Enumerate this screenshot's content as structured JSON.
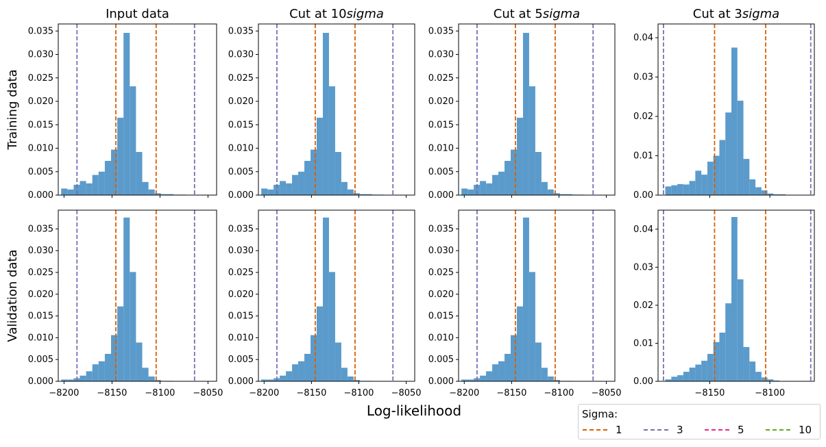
{
  "figure": {
    "xlabel": "Log-likelihood",
    "row_labels": [
      "Training data",
      "Validation data"
    ],
    "col_titles": [
      {
        "text": "Input data",
        "italic": ""
      },
      {
        "text": "Cut at 10",
        "italic": "sigma"
      },
      {
        "text": "Cut at 5",
        "italic": "sigma"
      },
      {
        "text": "Cut at 3",
        "italic": "sigma"
      }
    ],
    "bar_color": "#5b9bcb"
  },
  "legend": {
    "title": "Sigma:",
    "entries": [
      {
        "label": "1",
        "color": "#d95f02"
      },
      {
        "label": "3",
        "color": "#7570b3"
      },
      {
        "label": "5",
        "color": "#e7298a"
      },
      {
        "label": "10",
        "color": "#66a61e"
      }
    ]
  },
  "chart_data": [
    {
      "type": "bar",
      "row": "Training data",
      "col": "Input data",
      "xlim": [
        -8206,
        -8041
      ],
      "ylim": [
        0,
        0.0365
      ],
      "xticks": [
        -8200,
        -8150,
        -8100,
        -8050
      ],
      "yticks": [
        0,
        0.005,
        0.01,
        0.015,
        0.02,
        0.025,
        0.03,
        0.035
      ],
      "ytick_labels": [
        "0.000",
        "0.005",
        "0.010",
        "0.015",
        "0.020",
        "0.025",
        "0.030",
        "0.035"
      ],
      "show_xtick_labels": false,
      "bin_start": -8203,
      "bin_width": 6.5,
      "values": [
        0.0014,
        0.0012,
        0.0022,
        0.003,
        0.0025,
        0.0043,
        0.005,
        0.0073,
        0.0097,
        0.0165,
        0.0346,
        0.0232,
        0.0092,
        0.0028,
        0.0012,
        0.0004,
        0.0002,
        0.0002,
        0.0001,
        0.0001
      ],
      "vlines": [
        {
          "x": -8186.5,
          "sigma": "3"
        },
        {
          "x": -8146,
          "sigma": "1"
        },
        {
          "x": -8104,
          "sigma": "1"
        },
        {
          "x": -8064,
          "sigma": "3"
        }
      ]
    },
    {
      "type": "bar",
      "row": "Training data",
      "col": "Cut at 10sigma",
      "xlim": [
        -8206,
        -8041
      ],
      "ylim": [
        0,
        0.0365
      ],
      "xticks": [
        -8200,
        -8150,
        -8100,
        -8050
      ],
      "yticks": [
        0,
        0.005,
        0.01,
        0.015,
        0.02,
        0.025,
        0.03,
        0.035
      ],
      "ytick_labels": [
        "0.000",
        "0.005",
        "0.010",
        "0.015",
        "0.020",
        "0.025",
        "0.030",
        "0.035"
      ],
      "show_xtick_labels": false,
      "bin_start": -8203,
      "bin_width": 6.5,
      "values": [
        0.0014,
        0.0012,
        0.0022,
        0.003,
        0.0025,
        0.0043,
        0.005,
        0.0073,
        0.0097,
        0.0165,
        0.0346,
        0.0232,
        0.0092,
        0.0028,
        0.0012,
        0.0004,
        0.0002,
        0.0002,
        0.0001,
        0.0001
      ],
      "vlines": [
        {
          "x": -8186.5,
          "sigma": "3"
        },
        {
          "x": -8146,
          "sigma": "1"
        },
        {
          "x": -8104,
          "sigma": "1"
        },
        {
          "x": -8064,
          "sigma": "3"
        }
      ]
    },
    {
      "type": "bar",
      "row": "Training data",
      "col": "Cut at 5sigma",
      "xlim": [
        -8206,
        -8041
      ],
      "ylim": [
        0,
        0.0365
      ],
      "xticks": [
        -8200,
        -8150,
        -8100,
        -8050
      ],
      "yticks": [
        0,
        0.005,
        0.01,
        0.015,
        0.02,
        0.025,
        0.03,
        0.035
      ],
      "ytick_labels": [
        "0.000",
        "0.005",
        "0.010",
        "0.015",
        "0.020",
        "0.025",
        "0.030",
        "0.035"
      ],
      "show_xtick_labels": false,
      "bin_start": -8203,
      "bin_width": 6.5,
      "values": [
        0.0014,
        0.0012,
        0.0022,
        0.003,
        0.0025,
        0.0043,
        0.005,
        0.0073,
        0.0097,
        0.0165,
        0.0346,
        0.0232,
        0.0092,
        0.0028,
        0.0012,
        0.0004,
        0.0002,
        0.0002,
        0.0001,
        0.0001
      ],
      "vlines": [
        {
          "x": -8186.5,
          "sigma": "3"
        },
        {
          "x": -8146,
          "sigma": "1"
        },
        {
          "x": -8104,
          "sigma": "1"
        },
        {
          "x": -8064,
          "sigma": "3"
        }
      ]
    },
    {
      "type": "bar",
      "row": "Training data",
      "col": "Cut at 3sigma",
      "xlim": [
        -8193,
        -8063
      ],
      "ylim": [
        0,
        0.0435
      ],
      "xticks": [
        -8150,
        -8100
      ],
      "yticks": [
        0,
        0.01,
        0.02,
        0.03,
        0.04
      ],
      "ytick_labels": [
        "0.00",
        "0.01",
        "0.02",
        "0.03",
        "0.04"
      ],
      "show_xtick_labels": false,
      "bin_start": -8187,
      "bin_width": 5.0,
      "values": [
        0.0022,
        0.0025,
        0.0028,
        0.0027,
        0.0036,
        0.0062,
        0.0052,
        0.0085,
        0.01,
        0.014,
        0.021,
        0.0375,
        0.024,
        0.0092,
        0.004,
        0.002,
        0.0012,
        0.0004,
        0.0002,
        0.0002
      ],
      "vlines": [
        {
          "x": -8188.5,
          "sigma": "3"
        },
        {
          "x": -8146,
          "sigma": "1"
        },
        {
          "x": -8103.5,
          "sigma": "1"
        },
        {
          "x": -8066,
          "sigma": "3"
        }
      ]
    },
    {
      "type": "bar",
      "row": "Validation data",
      "col": "Input data",
      "xlim": [
        -8206,
        -8041
      ],
      "ylim": [
        0,
        0.0393
      ],
      "xticks": [
        -8200,
        -8150,
        -8100,
        -8050
      ],
      "yticks": [
        0,
        0.005,
        0.01,
        0.015,
        0.02,
        0.025,
        0.03,
        0.035
      ],
      "ytick_labels": [
        "0.000",
        "0.005",
        "0.010",
        "0.015",
        "0.020",
        "0.025",
        "0.030",
        "0.035"
      ],
      "show_xtick_labels": true,
      "bin_start": -8203,
      "bin_width": 6.5,
      "values": [
        0.0004,
        0.0004,
        0.0007,
        0.0013,
        0.0023,
        0.0039,
        0.0046,
        0.0063,
        0.0106,
        0.0172,
        0.0376,
        0.0251,
        0.0089,
        0.0031,
        0.0011,
        0.0003,
        0.0001,
        0.0001,
        0,
        0
      ],
      "vlines": [
        {
          "x": -8186.5,
          "sigma": "3"
        },
        {
          "x": -8146,
          "sigma": "1"
        },
        {
          "x": -8104,
          "sigma": "1"
        },
        {
          "x": -8064,
          "sigma": "3"
        }
      ]
    },
    {
      "type": "bar",
      "row": "Validation data",
      "col": "Cut at 10sigma",
      "xlim": [
        -8206,
        -8041
      ],
      "ylim": [
        0,
        0.0393
      ],
      "xticks": [
        -8200,
        -8150,
        -8100,
        -8050
      ],
      "yticks": [
        0,
        0.005,
        0.01,
        0.015,
        0.02,
        0.025,
        0.03,
        0.035
      ],
      "ytick_labels": [
        "0.000",
        "0.005",
        "0.010",
        "0.015",
        "0.020",
        "0.025",
        "0.030",
        "0.035"
      ],
      "show_xtick_labels": true,
      "bin_start": -8203,
      "bin_width": 6.5,
      "values": [
        0.0004,
        0.0004,
        0.0007,
        0.0013,
        0.0023,
        0.0039,
        0.0046,
        0.0063,
        0.0106,
        0.0172,
        0.0376,
        0.0251,
        0.0089,
        0.0031,
        0.0011,
        0.0003,
        0.0001,
        0.0001,
        0,
        0
      ],
      "vlines": [
        {
          "x": -8186.5,
          "sigma": "3"
        },
        {
          "x": -8146,
          "sigma": "1"
        },
        {
          "x": -8104,
          "sigma": "1"
        },
        {
          "x": -8064,
          "sigma": "3"
        }
      ]
    },
    {
      "type": "bar",
      "row": "Validation data",
      "col": "Cut at 5sigma",
      "xlim": [
        -8206,
        -8041
      ],
      "ylim": [
        0,
        0.0393
      ],
      "xticks": [
        -8200,
        -8150,
        -8100,
        -8050
      ],
      "yticks": [
        0,
        0.005,
        0.01,
        0.015,
        0.02,
        0.025,
        0.03,
        0.035
      ],
      "ytick_labels": [
        "0.000",
        "0.005",
        "0.010",
        "0.015",
        "0.020",
        "0.025",
        "0.030",
        "0.035"
      ],
      "show_xtick_labels": true,
      "bin_start": -8203,
      "bin_width": 6.5,
      "values": [
        0.0004,
        0.0004,
        0.0007,
        0.0013,
        0.0023,
        0.0039,
        0.0046,
        0.0063,
        0.0106,
        0.0172,
        0.0376,
        0.0251,
        0.0089,
        0.0031,
        0.0011,
        0.0003,
        0.0001,
        0.0001,
        0,
        0
      ],
      "vlines": [
        {
          "x": -8186.5,
          "sigma": "3"
        },
        {
          "x": -8146,
          "sigma": "1"
        },
        {
          "x": -8104,
          "sigma": "1"
        },
        {
          "x": -8064,
          "sigma": "3"
        }
      ]
    },
    {
      "type": "bar",
      "row": "Validation data",
      "col": "Cut at 3sigma",
      "xlim": [
        -8193,
        -8063
      ],
      "ylim": [
        0,
        0.045
      ],
      "xticks": [
        -8150,
        -8100
      ],
      "yticks": [
        0,
        0.01,
        0.02,
        0.03,
        0.04
      ],
      "ytick_labels": [
        "0.00",
        "0.01",
        "0.02",
        "0.03",
        "0.04"
      ],
      "show_xtick_labels": true,
      "bin_start": -8187,
      "bin_width": 5.0,
      "values": [
        0.0005,
        0.0012,
        0.0016,
        0.0025,
        0.0036,
        0.0044,
        0.0054,
        0.0072,
        0.0103,
        0.0128,
        0.0205,
        0.0432,
        0.0268,
        0.009,
        0.0052,
        0.0025,
        0.001,
        0.0005,
        0.0002,
        0
      ],
      "vlines": [
        {
          "x": -8188.5,
          "sigma": "3"
        },
        {
          "x": -8146,
          "sigma": "1"
        },
        {
          "x": -8103.5,
          "sigma": "1"
        },
        {
          "x": -8066,
          "sigma": "3"
        }
      ]
    }
  ]
}
